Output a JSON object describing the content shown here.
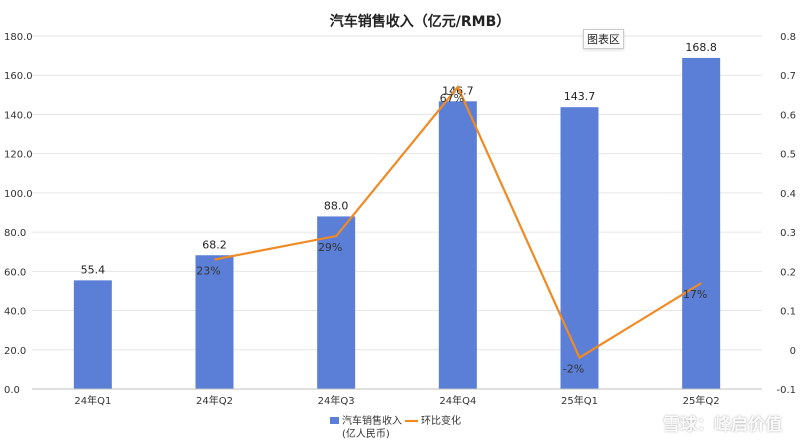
{
  "colors": {
    "bar": "#5b7fd6",
    "line": "#f08a24",
    "grid": "#e6e6e6"
  },
  "chart_area_label": "图表区",
  "watermark": "雪球：峰启价值",
  "chart_data": {
    "type": "bar",
    "title": "汽车销售收入（亿元/RMB）",
    "categories": [
      "24年Q1",
      "24年Q2",
      "24年Q3",
      "24年Q4",
      "25年Q1",
      "25年Q2"
    ],
    "series": [
      {
        "name": "汽车销售收入\n(亿人民币)",
        "type": "bar",
        "axis": "left",
        "values": [
          55.4,
          68.2,
          88.0,
          146.7,
          143.7,
          168.8
        ],
        "labels": [
          "55.4",
          "68.2",
          "88.0",
          "146.7",
          "143.7",
          "168.8"
        ]
      },
      {
        "name": "环比变化",
        "type": "line",
        "axis": "right",
        "values": [
          null,
          0.23,
          0.29,
          0.67,
          -0.02,
          0.17
        ],
        "labels": [
          "",
          "23%",
          "29%",
          "67%",
          "-2%",
          "17%"
        ]
      }
    ],
    "y_left": {
      "min": 0,
      "max": 180,
      "step": 20,
      "ticks": [
        "0.0",
        "20.0",
        "40.0",
        "60.0",
        "80.0",
        "100.0",
        "120.0",
        "140.0",
        "160.0",
        "180.0"
      ]
    },
    "y_right": {
      "min": -0.1,
      "max": 0.8,
      "step": 0.1,
      "ticks": [
        "-0.1",
        "0",
        "0.1",
        "0.2",
        "0.3",
        "0.4",
        "0.5",
        "0.6",
        "0.7",
        "0.8"
      ]
    },
    "legend_position": "bottom",
    "grid": true
  }
}
